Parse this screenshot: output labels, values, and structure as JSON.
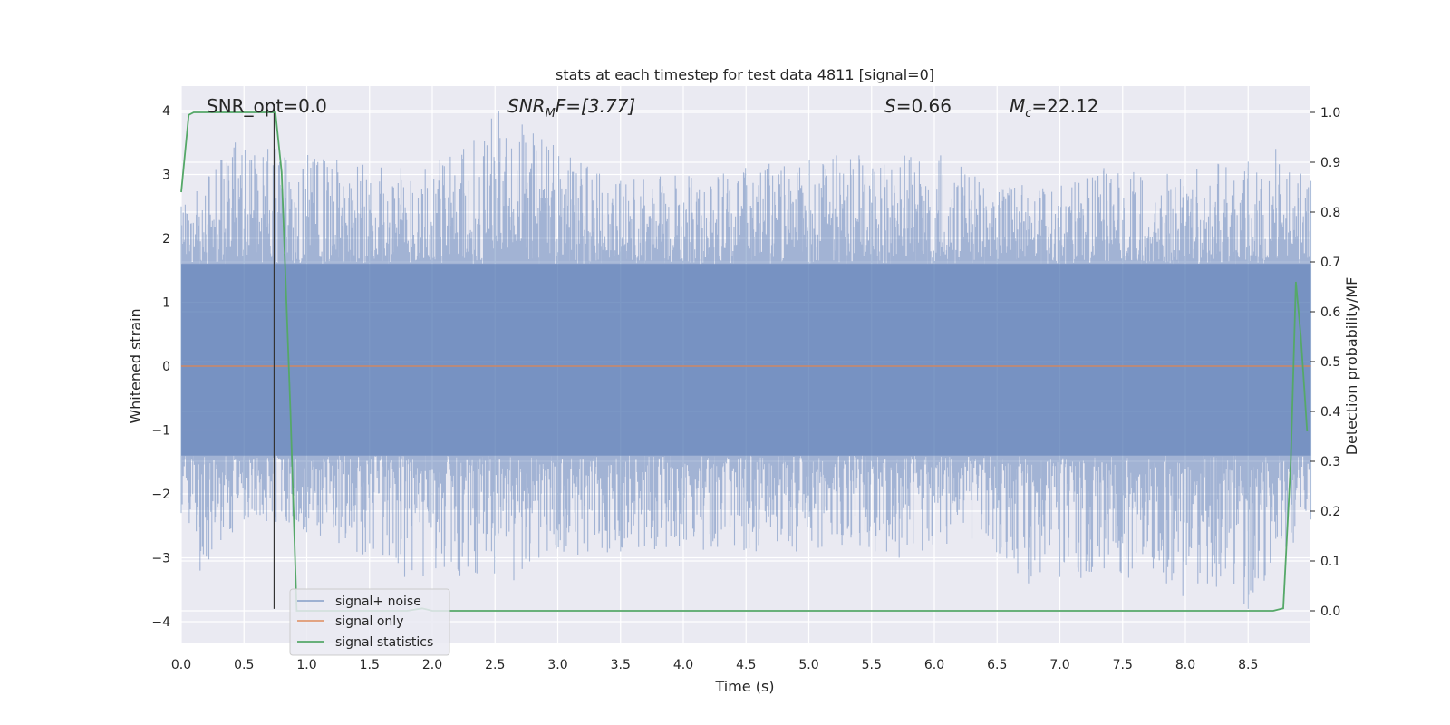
{
  "chart_data": {
    "type": "line",
    "title": "stats at each timestep for test data 4811 [signal=0]",
    "xlabel": "Time (s)",
    "ylabel": "Whitened strain",
    "y2label": "Detection probability/MF",
    "xlim": [
      0.0,
      9.0
    ],
    "ylim": [
      -4.2,
      4.1
    ],
    "y2lim": [
      -0.045,
      1.045
    ],
    "xticks": [
      "0.0",
      "0.5",
      "1.0",
      "1.5",
      "2.0",
      "2.5",
      "3.0",
      "3.5",
      "4.0",
      "4.5",
      "5.0",
      "5.5",
      "6.0",
      "6.5",
      "7.0",
      "7.5",
      "8.0",
      "8.5"
    ],
    "yticks": [
      "4",
      "3",
      "2",
      "1",
      "0",
      "−1",
      "−2",
      "−3",
      "−4"
    ],
    "y2ticks": [
      "1.0",
      "0.9",
      "0.8",
      "0.7",
      "0.6",
      "0.5",
      "0.4",
      "0.3",
      "0.2",
      "0.1",
      "0.0"
    ],
    "grid": true,
    "legend_position": "bottom-left",
    "annotations": {
      "snr_opt": "SNR_opt=0.0",
      "snr_mf_italic": "SNR",
      "snr_mf_sub": "M",
      "snr_mf_rest": "F=[3.77]",
      "s_italic": "S",
      "s_rest": "=0.66",
      "mc_italic": "M",
      "mc_sub": "c",
      "mc_rest": "=22.12"
    },
    "series": [
      {
        "name": "signal+ noise",
        "color": "#4c72b0",
        "axis": "left",
        "kind": "noise",
        "x_range": [
          0.0,
          9.0
        ],
        "core_band": [
          -1.4,
          1.6
        ],
        "upper_envelope": [
          [
            0.0,
            2.5
          ],
          [
            0.43,
            3.5
          ],
          [
            0.69,
            3.4
          ],
          [
            0.75,
            3.4
          ],
          [
            1.75,
            3.1
          ],
          [
            2.25,
            3.4
          ],
          [
            2.53,
            4.0
          ],
          [
            3.5,
            2.9
          ],
          [
            5.22,
            3.3
          ],
          [
            5.4,
            3.3
          ],
          [
            6.05,
            3.3
          ],
          [
            6.6,
            2.8
          ],
          [
            7.35,
            3.1
          ],
          [
            8.5,
            3.2
          ],
          [
            8.72,
            3.4
          ],
          [
            9.0,
            2.9
          ]
        ],
        "lower_envelope": [
          [
            0.0,
            -2.3
          ],
          [
            0.15,
            -3.2
          ],
          [
            0.5,
            -2.4
          ],
          [
            1.0,
            -2.6
          ],
          [
            1.78,
            -3.3
          ],
          [
            2.65,
            -3.35
          ],
          [
            2.85,
            -3.0
          ],
          [
            3.5,
            -2.9
          ],
          [
            4.9,
            -2.9
          ],
          [
            5.62,
            -2.9
          ],
          [
            5.72,
            -3.0
          ],
          [
            6.3,
            -2.7
          ],
          [
            6.75,
            -3.4
          ],
          [
            7.0,
            -3.3
          ],
          [
            7.85,
            -3.4
          ],
          [
            7.98,
            -3.6
          ],
          [
            8.1,
            -3.4
          ],
          [
            8.5,
            -3.8
          ],
          [
            9.0,
            -2.4
          ]
        ]
      },
      {
        "name": "signal only",
        "color": "#dd8452",
        "axis": "left",
        "x": [
          0.0,
          9.0
        ],
        "y": [
          0.0,
          0.0
        ]
      },
      {
        "name": "signal statistics",
        "color": "#55a868",
        "axis": "right",
        "x": [
          0.0,
          0.06,
          0.1,
          0.3,
          0.5,
          0.72,
          0.75,
          0.8,
          0.87,
          0.92,
          1.8,
          1.92,
          2.0,
          2.1,
          8.7,
          8.78,
          8.84,
          8.88,
          8.92,
          8.97
        ],
        "y": [
          0.84,
          0.995,
          1.0,
          1.0,
          1.0,
          1.0,
          1.0,
          0.88,
          0.4,
          0.0,
          0.0,
          0.005,
          0.0,
          0.0,
          0.0,
          0.005,
          0.3,
          0.66,
          0.55,
          0.36
        ]
      }
    ],
    "vline": {
      "x": 0.74,
      "y_from": -3.8,
      "y_to": 4.1,
      "color": "#333333"
    }
  }
}
